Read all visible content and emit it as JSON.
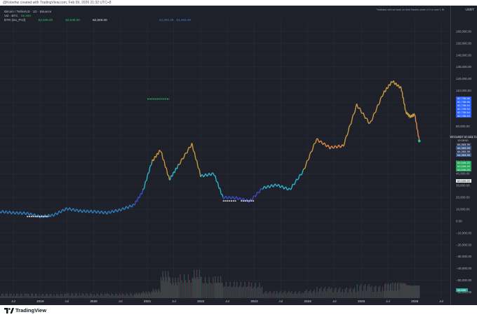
{
  "credit": "@Kobehw created with TradingView.com, Feb 09, 2026 21:32 UTC+8",
  "legend": {
    "symbol": "Bitcoin / TetherUS · 1D · Binance",
    "vol_label": "Vol · BTC",
    "vol_value": "56.89K",
    "indicator_name": "BTR (Da_Prof)",
    "indicator_values": [
      "62,049.20",
      "62,049.20",
      "62,049.20",
      "64,353.39",
      "64,353.39"
    ]
  },
  "note": "*Indicator will not work on time frames under 4 H or over 1 W.",
  "currency": "USDT",
  "colors": {
    "background": "#1f212a",
    "badge_blue": "#2962ff",
    "badge_green": "#26a65b",
    "badge_white": "#e6e6e6",
    "ma_low": "#2cb6c9",
    "ma_high": "#f0a040"
  },
  "chart_data": {
    "type": "line",
    "title": "",
    "xlabel": "",
    "ylabel": "",
    "series": [
      {
        "name": "BTCUSDT",
        "x": [
          "2018-04",
          "2018-07",
          "2018-10",
          "2019-01",
          "2019-04",
          "2019-07",
          "2019-10",
          "2020-01",
          "2020-04",
          "2020-07",
          "2020-10",
          "2020-12",
          "2021-02",
          "2021-04",
          "2021-06",
          "2021-08",
          "2021-11",
          "2022-01",
          "2022-04",
          "2022-06",
          "2022-09",
          "2022-12",
          "2023-03",
          "2023-06",
          "2023-09",
          "2023-12",
          "2024-03",
          "2024-06",
          "2024-09",
          "2024-12",
          "2025-03",
          "2025-06",
          "2025-08",
          "2025-10",
          "2025-11",
          "2025-12",
          "2026-01",
          "2026-02"
        ],
        "values": [
          8000,
          7000,
          6500,
          3800,
          5000,
          10500,
          8500,
          8000,
          7000,
          9500,
          13500,
          25000,
          50000,
          60000,
          35000,
          47000,
          65000,
          38000,
          40000,
          20000,
          19500,
          16800,
          28000,
          30500,
          26500,
          42000,
          69000,
          62000,
          63500,
          98000,
          82000,
          108000,
          118000,
          112000,
          92000,
          88000,
          90000,
          67603
        ]
      }
    ],
    "last_price_label": "BTCUSDT",
    "last_price": "67,603.71",
    "last_price_time": "10:28:00",
    "y_ticks": [
      -60000,
      -50000,
      -40000,
      -30000,
      -20000,
      -10000,
      0,
      10000,
      20000,
      30000,
      40000,
      50000,
      60000,
      70000,
      80000,
      90000,
      100000,
      110000,
      120000,
      130000,
      140000,
      150000,
      160000
    ],
    "y_tick_labels": [
      "−60,000.00",
      "−50,000.00",
      "−40,000.00",
      "−30,000.00",
      "−20,000.00",
      "−10,000.00",
      "0.00",
      "10,000.00",
      "20,000.00",
      "30,000.00",
      "40,000.00",
      "50,000.00",
      "60,000.00",
      "70,000.00",
      "80,000.00",
      "90,000.00",
      "100,000.00",
      "110,000.00",
      "120,000.00",
      "130,000.00",
      "140,000.00",
      "150,000.00",
      "160,000.00"
    ],
    "ylim": [
      -65000,
      170000
    ],
    "x_tick_labels": [
      "Jul",
      "2019",
      "Jul",
      "2020",
      "Jul",
      "2021",
      "Jul",
      "2022",
      "Jul",
      "2023",
      "Jul",
      "2024",
      "Jul",
      "2025",
      "Jul",
      "2026",
      "Jul"
    ],
    "x_tick_dates": [
      "2018-07",
      "2019-01",
      "2019-07",
      "2020-01",
      "2020-07",
      "2021-01",
      "2021-07",
      "2022-01",
      "2022-07",
      "2023-01",
      "2023-07",
      "2024-01",
      "2024-07",
      "2025-01",
      "2025-07",
      "2026-01",
      "2026-07"
    ],
    "right_badges_blue": [
      "82,735.56",
      "82,735.56",
      "82,735.54",
      "82,735.54",
      "82,735.54",
      "82,735.54"
    ],
    "right_badges_gray": [
      "64,353.39",
      "64,353.39",
      "64,353.39",
      "64,353.39"
    ],
    "right_badges_green": [
      "62,049.20",
      "62,049.20",
      "62,049.20"
    ],
    "right_badge_white": "62,049.20",
    "volume_badge": "56.89K",
    "grid": true,
    "legend_position": "top-left"
  },
  "footer": {
    "brand": "TradingView"
  }
}
